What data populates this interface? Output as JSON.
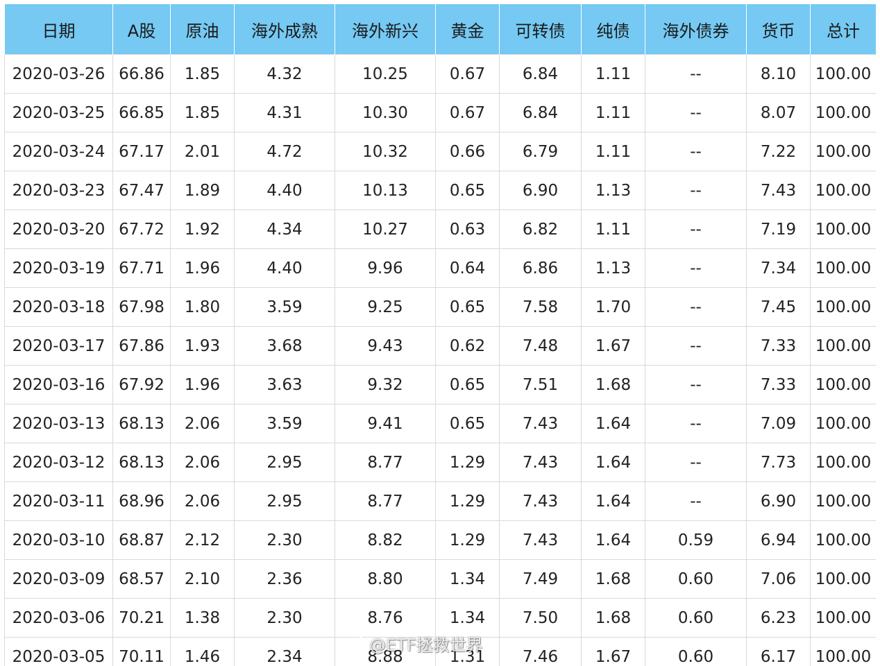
{
  "table": {
    "headers": [
      "日期",
      "A股",
      "原油",
      "海外成熟",
      "海外新兴",
      "黄金",
      "可转债",
      "纯债",
      "海外债券",
      "货币",
      "总计"
    ],
    "rows": [
      [
        "2020-03-26",
        "66.86",
        "1.85",
        "4.32",
        "10.25",
        "0.67",
        "6.84",
        "1.11",
        "--",
        "8.10",
        "100.00"
      ],
      [
        "2020-03-25",
        "66.85",
        "1.85",
        "4.31",
        "10.30",
        "0.67",
        "6.84",
        "1.11",
        "--",
        "8.07",
        "100.00"
      ],
      [
        "2020-03-24",
        "67.17",
        "2.01",
        "4.72",
        "10.32",
        "0.66",
        "6.79",
        "1.11",
        "--",
        "7.22",
        "100.00"
      ],
      [
        "2020-03-23",
        "67.47",
        "1.89",
        "4.40",
        "10.13",
        "0.65",
        "6.90",
        "1.13",
        "--",
        "7.43",
        "100.00"
      ],
      [
        "2020-03-20",
        "67.72",
        "1.92",
        "4.34",
        "10.27",
        "0.63",
        "6.82",
        "1.11",
        "--",
        "7.19",
        "100.00"
      ],
      [
        "2020-03-19",
        "67.71",
        "1.96",
        "4.40",
        "9.96",
        "0.64",
        "6.86",
        "1.13",
        "--",
        "7.34",
        "100.00"
      ],
      [
        "2020-03-18",
        "67.98",
        "1.80",
        "3.59",
        "9.25",
        "0.65",
        "7.58",
        "1.70",
        "--",
        "7.45",
        "100.00"
      ],
      [
        "2020-03-17",
        "67.86",
        "1.93",
        "3.68",
        "9.43",
        "0.62",
        "7.48",
        "1.67",
        "--",
        "7.33",
        "100.00"
      ],
      [
        "2020-03-16",
        "67.92",
        "1.96",
        "3.63",
        "9.32",
        "0.65",
        "7.51",
        "1.68",
        "--",
        "7.33",
        "100.00"
      ],
      [
        "2020-03-13",
        "68.13",
        "2.06",
        "3.59",
        "9.41",
        "0.65",
        "7.43",
        "1.64",
        "--",
        "7.09",
        "100.00"
      ],
      [
        "2020-03-12",
        "68.13",
        "2.06",
        "2.95",
        "8.77",
        "1.29",
        "7.43",
        "1.64",
        "--",
        "7.73",
        "100.00"
      ],
      [
        "2020-03-11",
        "68.96",
        "2.06",
        "2.95",
        "8.77",
        "1.29",
        "7.43",
        "1.64",
        "--",
        "6.90",
        "100.00"
      ],
      [
        "2020-03-10",
        "68.87",
        "2.12",
        "2.30",
        "8.82",
        "1.29",
        "7.43",
        "1.64",
        "0.59",
        "6.94",
        "100.00"
      ],
      [
        "2020-03-09",
        "68.57",
        "2.10",
        "2.36",
        "8.80",
        "1.34",
        "7.49",
        "1.68",
        "0.60",
        "7.06",
        "100.00"
      ],
      [
        "2020-03-06",
        "70.21",
        "1.38",
        "2.30",
        "8.76",
        "1.34",
        "7.50",
        "1.68",
        "0.60",
        "6.23",
        "100.00"
      ],
      [
        "2020-03-05",
        "70.11",
        "1.46",
        "2.34",
        "8.88",
        "1.31",
        "7.46",
        "1.67",
        "0.60",
        "6.17",
        "100.00"
      ]
    ]
  },
  "watermark": {
    "text": "@ETF拯救世界",
    "icon": "weibo-icon"
  },
  "colors": {
    "header_bg": "#75c9f3",
    "grid": "#d9d9d9"
  }
}
